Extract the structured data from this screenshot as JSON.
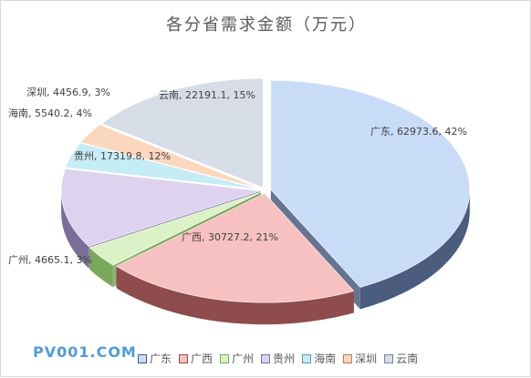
{
  "watermark": "PV001.COM",
  "chart_data": {
    "type": "pie",
    "title": "各分省需求金额（万元）",
    "start_category": "广东",
    "categories": [
      "广东",
      "广西",
      "广州",
      "贵州",
      "海南",
      "深圳",
      "云南"
    ],
    "values": [
      62973.6,
      30727.2,
      4665.1,
      17319.8,
      5540.2,
      4456.9,
      22191.1
    ],
    "data_labels": [
      "广东, 62973.6, 42%",
      "广西, 30727.2, 21%",
      "广州, 4665.1, 3%",
      "贵州, 17319.8, 12%",
      "海南, 5540.2, 4%",
      "深圳, 4456.9, 3%",
      "云南, 22191.1, 15%"
    ],
    "colors": {
      "广东": "#c9dcf7",
      "广西": "#f7c1c1",
      "广州": "#dbf2c6",
      "贵州": "#ddd3ef",
      "海南": "#c6ecf5",
      "深圳": "#fbd7bd",
      "云南": "#d7dde6"
    },
    "side_colors": {
      "广东": "#4a5d7e",
      "广西": "#8f4c4c",
      "广州": "#7aa85a",
      "贵州": "#7a6e99",
      "海南": "#5a98a8",
      "深圳": "#b97e52",
      "云南": "#7a8596"
    },
    "legend_position": "bottom",
    "style": "3d-exploded"
  }
}
